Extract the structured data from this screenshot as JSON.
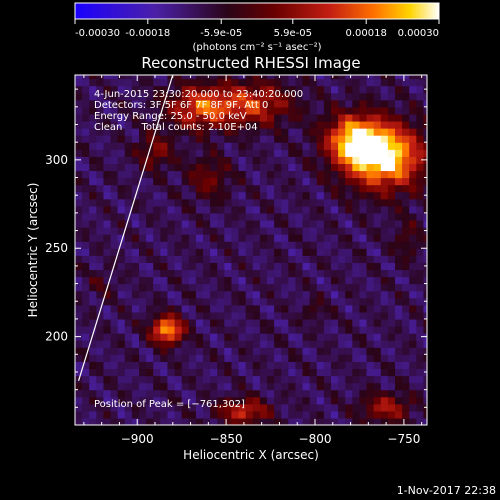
{
  "colorbar": {
    "ticks": [
      "-0.00030",
      "-0.00018",
      "-5.9e-05",
      "5.9e-05",
      "0.00018",
      "0.00030"
    ],
    "tick_values": [
      -0.0003,
      -0.00018,
      -5.9e-05,
      5.9e-05,
      0.00018,
      0.0003
    ],
    "range": [
      -0.0003,
      0.0003
    ],
    "unit_label": "(photons cm⁻² s⁻¹ asec⁻²)",
    "colors": [
      "#1a00ff",
      "#4b20a8",
      "#2a0418",
      "#6a0000",
      "#c31e12",
      "#ff6f00",
      "#ffd400",
      "#ffffff"
    ]
  },
  "chart_data": {
    "type": "heatmap",
    "title": "Reconstructed RHESSI Image",
    "xlabel": "Heliocentric X (arcsec)",
    "ylabel": "Heliocentric Y (arcsec)",
    "xlim": [
      -935,
      -737
    ],
    "ylim": [
      150,
      348
    ],
    "x_ticks": [
      -900,
      -850,
      -800,
      -750
    ],
    "x_tick_labels": [
      "−900",
      "−850",
      "−800",
      "−750"
    ],
    "y_ticks": [
      200,
      250,
      300
    ],
    "y_tick_labels": [
      "200",
      "250",
      "300"
    ],
    "grid": false,
    "annotations": [
      "4-Jun-2015 23:30:20.000 to 23:40:20.000",
      "Detectors: 3F 5F 6F 7F 8F 9F, Att 0",
      "Energy Range: 25.0 - 50.0 keV",
      "Clean      Total counts: 2.10E+04"
    ],
    "peak_text": "Position of Peak = [−761,302]",
    "peak": {
      "x": -761,
      "y": 302
    },
    "sources": [
      {
        "x": -761,
        "y": 302,
        "rx": 22,
        "ry": 18,
        "intensity": 1.0
      },
      {
        "x": -778,
        "y": 312,
        "rx": 16,
        "ry": 14,
        "intensity": 0.75
      },
      {
        "x": -865,
        "y": 330,
        "rx": 18,
        "ry": 12,
        "intensity": 0.6
      },
      {
        "x": -835,
        "y": 332,
        "rx": 22,
        "ry": 12,
        "intensity": 0.55
      },
      {
        "x": -890,
        "y": 305,
        "rx": 10,
        "ry": 10,
        "intensity": 0.35
      },
      {
        "x": -860,
        "y": 290,
        "rx": 12,
        "ry": 12,
        "intensity": 0.3
      },
      {
        "x": -883,
        "y": 204,
        "rx": 9,
        "ry": 8,
        "intensity": 0.85
      },
      {
        "x": -840,
        "y": 158,
        "rx": 14,
        "ry": 7,
        "intensity": 0.55
      },
      {
        "x": -760,
        "y": 160,
        "rx": 14,
        "ry": 8,
        "intensity": 0.45
      },
      {
        "x": -800,
        "y": 215,
        "rx": 6,
        "ry": 6,
        "intensity": 0.2
      },
      {
        "x": -748,
        "y": 255,
        "rx": 8,
        "ry": 12,
        "intensity": 0.2
      },
      {
        "x": -920,
        "y": 230,
        "rx": 8,
        "ry": 8,
        "intensity": 0.15
      }
    ],
    "limb_line": {
      "x1": -933,
      "y1": 175,
      "x2": -880,
      "y2": 348
    }
  },
  "footer": {
    "timestamp": "1-Nov-2017 22:38"
  }
}
